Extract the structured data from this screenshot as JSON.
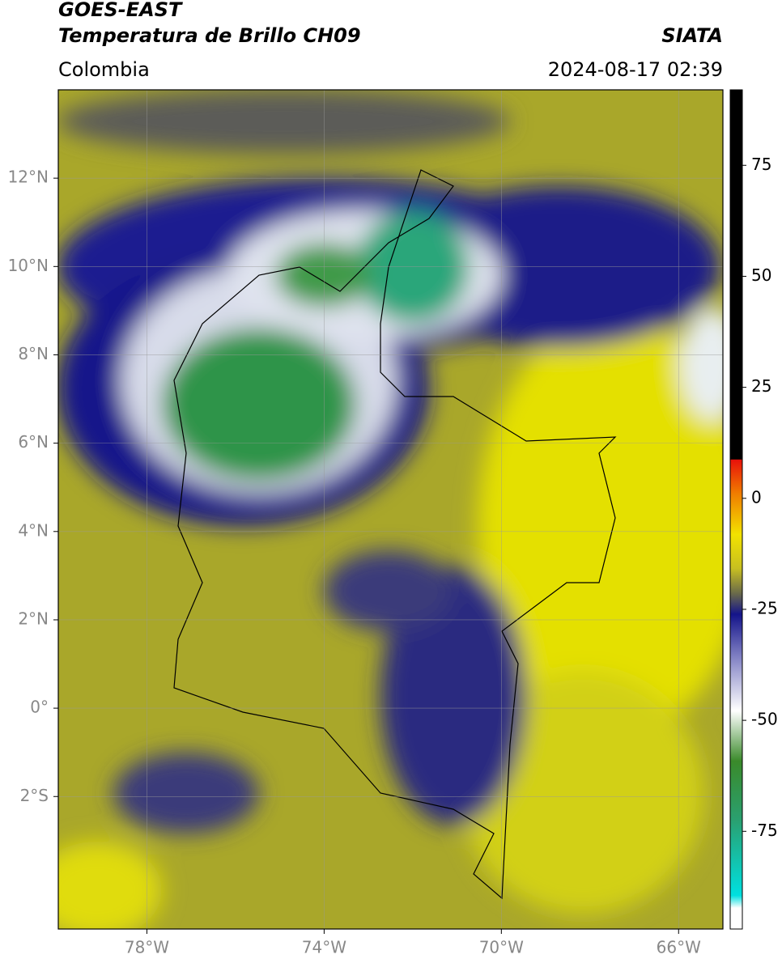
{
  "header": {
    "satellite": "GOES-EAST",
    "product": "Temperatura de Brillo CH09",
    "source": "SIATA",
    "region": "Colombia",
    "datetime": "2024-08-17 02:39"
  },
  "map": {
    "lonlim": [
      -80,
      -65
    ],
    "latlim": [
      -5,
      14
    ],
    "lon_ticks": [
      {
        "value": -78,
        "label": "78°W"
      },
      {
        "value": -74,
        "label": "74°W"
      },
      {
        "value": -70,
        "label": "70°W"
      },
      {
        "value": -66,
        "label": "66°W"
      }
    ],
    "lat_ticks": [
      {
        "value": 12,
        "label": "12°N"
      },
      {
        "value": 10,
        "label": "10°N"
      },
      {
        "value": 8,
        "label": "8°N"
      },
      {
        "value": 6,
        "label": "6°N"
      },
      {
        "value": 4,
        "label": "4°N"
      },
      {
        "value": 2,
        "label": "2°N"
      },
      {
        "value": 0,
        "label": "0°"
      },
      {
        "value": -2,
        "label": "2°S"
      }
    ],
    "grid": true
  },
  "colorbar": {
    "lim": [
      -97,
      92
    ],
    "ticks": [
      75,
      50,
      25,
      0,
      -25,
      -50,
      -75
    ]
  }
}
